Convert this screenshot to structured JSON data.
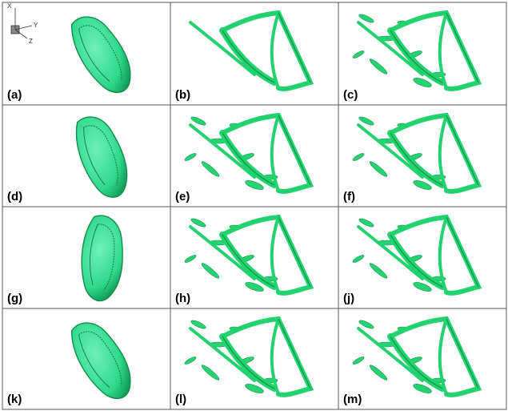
{
  "axes_triad": {
    "x": "X",
    "y": "Y",
    "z": "Z"
  },
  "panels": [
    {
      "label": "(a)"
    },
    {
      "label": "(b)"
    },
    {
      "label": "(c)"
    },
    {
      "label": "(d)"
    },
    {
      "label": "(e)"
    },
    {
      "label": "(f)"
    },
    {
      "label": "(g)"
    },
    {
      "label": "(h)"
    },
    {
      "label": "(j)"
    },
    {
      "label": "(k)"
    },
    {
      "label": "(l)"
    },
    {
      "label": "(m)"
    }
  ]
}
